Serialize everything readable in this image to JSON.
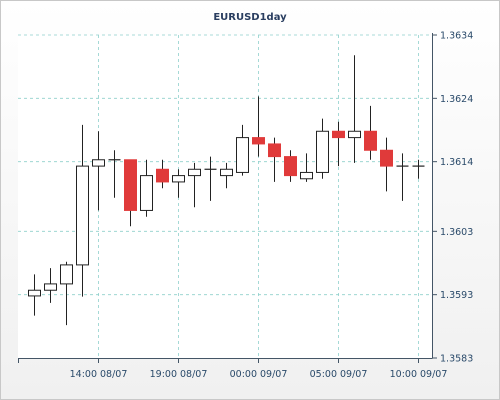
{
  "chart_data": {
    "type": "candlestick",
    "title": "EURUSD1day",
    "y_ticks": [
      "1.3634",
      "1.3624",
      "1.3614",
      "1.3603",
      "1.3593",
      "1.3583"
    ],
    "y_tick_values": [
      1.3634,
      1.3624,
      1.3614,
      1.3603,
      1.3593,
      1.3583
    ],
    "x_ticks": [
      "14:00 08/07",
      "19:00 08/07",
      "00:00 09/07",
      "05:00 09/07",
      "10:00 09/07"
    ],
    "x_tick_candle_index": [
      4,
      9,
      14,
      19,
      24
    ],
    "ylim": [
      1.3583,
      1.3634
    ],
    "grid": true,
    "colors": {
      "up": "#ffffff",
      "down": "#e03a3a",
      "outline": "#222222",
      "grid": "#8fd0cc",
      "axis": "#445566"
    },
    "candles": [
      {
        "open": 1.35928,
        "high": 1.35962,
        "low": 1.35897,
        "close": 1.35937
      },
      {
        "open": 1.35937,
        "high": 1.35972,
        "low": 1.35917,
        "close": 1.35947
      },
      {
        "open": 1.35947,
        "high": 1.35982,
        "low": 1.35882,
        "close": 1.35977
      },
      {
        "open": 1.35977,
        "high": 1.36198,
        "low": 1.35927,
        "close": 1.36133
      },
      {
        "open": 1.36133,
        "high": 1.36188,
        "low": 1.36063,
        "close": 1.36143
      },
      {
        "open": 1.36143,
        "high": 1.36158,
        "low": 1.36083,
        "close": 1.36143
      },
      {
        "open": 1.36143,
        "high": 1.36143,
        "low": 1.36038,
        "close": 1.36063
      },
      {
        "open": 1.36063,
        "high": 1.36143,
        "low": 1.36053,
        "close": 1.36118
      },
      {
        "open": 1.36128,
        "high": 1.36143,
        "low": 1.36098,
        "close": 1.36108
      },
      {
        "open": 1.36108,
        "high": 1.36128,
        "low": 1.36083,
        "close": 1.36118
      },
      {
        "open": 1.36118,
        "high": 1.36138,
        "low": 1.36068,
        "close": 1.36128
      },
      {
        "open": 1.36128,
        "high": 1.36148,
        "low": 1.36078,
        "close": 1.36128
      },
      {
        "open": 1.36118,
        "high": 1.36138,
        "low": 1.36098,
        "close": 1.36128
      },
      {
        "open": 1.36123,
        "high": 1.36198,
        "low": 1.36118,
        "close": 1.36178
      },
      {
        "open": 1.36178,
        "high": 1.36243,
        "low": 1.36148,
        "close": 1.36168
      },
      {
        "open": 1.36168,
        "high": 1.36178,
        "low": 1.36108,
        "close": 1.36148
      },
      {
        "open": 1.36148,
        "high": 1.36158,
        "low": 1.36108,
        "close": 1.36118
      },
      {
        "open": 1.36113,
        "high": 1.36153,
        "low": 1.36108,
        "close": 1.36123
      },
      {
        "open": 1.36123,
        "high": 1.36208,
        "low": 1.36113,
        "close": 1.36188
      },
      {
        "open": 1.36188,
        "high": 1.36203,
        "low": 1.36133,
        "close": 1.36178
      },
      {
        "open": 1.36178,
        "high": 1.36308,
        "low": 1.36138,
        "close": 1.36188
      },
      {
        "open": 1.36188,
        "high": 1.36228,
        "low": 1.36143,
        "close": 1.36158
      },
      {
        "open": 1.36158,
        "high": 1.36178,
        "low": 1.36093,
        "close": 1.36133
      },
      {
        "open": 1.36133,
        "high": 1.36153,
        "low": 1.36078,
        "close": 1.36133
      },
      {
        "open": 1.36133,
        "high": 1.36143,
        "low": 1.36113,
        "close": 1.36133
      }
    ]
  }
}
